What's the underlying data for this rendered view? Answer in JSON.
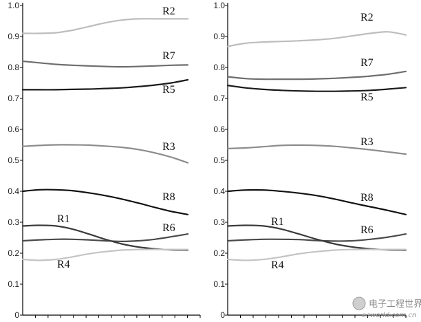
{
  "chart_data": [
    {
      "type": "line",
      "title": "",
      "xlabel": "",
      "ylabel": "",
      "ylim": [
        0,
        1.0
      ],
      "yticks": [
        "0",
        "0.1",
        "0.2",
        "0.3",
        "0.4",
        "0.5",
        "0.6",
        "0.7",
        "0.8",
        "0.9",
        "1.0"
      ],
      "x_tick_count": 14,
      "grid": false,
      "series": [
        {
          "name": "R2",
          "color": "#bdbdbd",
          "x": [
            0,
            1,
            2,
            3,
            4,
            5,
            6,
            7,
            8,
            9,
            10
          ],
          "values": [
            0.91,
            0.91,
            0.912,
            0.92,
            0.932,
            0.944,
            0.953,
            0.957,
            0.957,
            0.957,
            0.957
          ]
        },
        {
          "name": "R7",
          "color": "#6e6e6e",
          "x": [
            0,
            1,
            2,
            3,
            4,
            5,
            6,
            7,
            8,
            9,
            10
          ],
          "values": [
            0.82,
            0.815,
            0.81,
            0.807,
            0.805,
            0.803,
            0.802,
            0.803,
            0.805,
            0.807,
            0.808
          ]
        },
        {
          "name": "R5",
          "color": "#1a1a1a",
          "x": [
            0,
            1,
            2,
            3,
            4,
            5,
            6,
            7,
            8,
            9,
            10
          ],
          "values": [
            0.728,
            0.728,
            0.728,
            0.729,
            0.73,
            0.732,
            0.734,
            0.738,
            0.743,
            0.75,
            0.76
          ]
        },
        {
          "name": "R3",
          "color": "#8c8c8c",
          "x": [
            0,
            1,
            2,
            3,
            4,
            5,
            6,
            7,
            8,
            9,
            10
          ],
          "values": [
            0.545,
            0.548,
            0.55,
            0.55,
            0.549,
            0.546,
            0.542,
            0.535,
            0.524,
            0.51,
            0.492
          ]
        },
        {
          "name": "R8",
          "color": "#111111",
          "x": [
            0,
            1,
            2,
            3,
            4,
            5,
            6,
            7,
            8,
            9,
            10
          ],
          "values": [
            0.4,
            0.405,
            0.405,
            0.402,
            0.395,
            0.386,
            0.375,
            0.362,
            0.348,
            0.335,
            0.325
          ]
        },
        {
          "name": "R6",
          "color": "#4a4a4a",
          "x": [
            0,
            1,
            2,
            3,
            4,
            5,
            6,
            7,
            8,
            9,
            10
          ],
          "values": [
            0.24,
            0.243,
            0.245,
            0.245,
            0.243,
            0.24,
            0.238,
            0.24,
            0.245,
            0.253,
            0.262
          ]
        },
        {
          "name": "R1",
          "color": "#3a3a3a",
          "x": [
            0,
            1,
            2,
            3,
            4,
            5,
            6,
            7,
            8,
            9,
            10
          ],
          "values": [
            0.288,
            0.29,
            0.288,
            0.278,
            0.262,
            0.245,
            0.23,
            0.22,
            0.214,
            0.211,
            0.21
          ]
        },
        {
          "name": "R4",
          "color": "#c4c4c4",
          "x": [
            0,
            1,
            2,
            3,
            4,
            5,
            6,
            7,
            8,
            9,
            10
          ],
          "values": [
            0.18,
            0.177,
            0.18,
            0.188,
            0.198,
            0.205,
            0.21,
            0.212,
            0.212,
            0.212,
            0.212
          ]
        }
      ]
    },
    {
      "type": "line",
      "title": "",
      "xlabel": "",
      "ylabel": "",
      "ylim": [
        0,
        1.0
      ],
      "yticks": [
        "0",
        "0.1",
        "0.2",
        "0.3",
        "0.4",
        "0.5",
        "0.6",
        "0.7",
        "0.8",
        "0.9",
        "1.0"
      ],
      "x_tick_count": 14,
      "grid": false,
      "series": [
        {
          "name": "R2",
          "color": "#bdbdbd",
          "x": [
            0,
            1,
            2,
            3,
            4,
            5,
            6,
            7,
            8,
            9,
            10
          ],
          "values": [
            0.868,
            0.878,
            0.882,
            0.884,
            0.886,
            0.889,
            0.894,
            0.902,
            0.91,
            0.915,
            0.905
          ]
        },
        {
          "name": "R7",
          "color": "#6e6e6e",
          "x": [
            0,
            1,
            2,
            3,
            4,
            5,
            6,
            7,
            8,
            9,
            10
          ],
          "values": [
            0.77,
            0.764,
            0.762,
            0.762,
            0.762,
            0.763,
            0.765,
            0.768,
            0.772,
            0.778,
            0.787
          ]
        },
        {
          "name": "R5",
          "color": "#1a1a1a",
          "x": [
            0,
            1,
            2,
            3,
            4,
            5,
            6,
            7,
            8,
            9,
            10
          ],
          "values": [
            0.742,
            0.734,
            0.729,
            0.726,
            0.724,
            0.723,
            0.723,
            0.724,
            0.726,
            0.73,
            0.735
          ]
        },
        {
          "name": "R3",
          "color": "#8c8c8c",
          "x": [
            0,
            1,
            2,
            3,
            4,
            5,
            6,
            7,
            8,
            9,
            10
          ],
          "values": [
            0.538,
            0.54,
            0.544,
            0.548,
            0.549,
            0.548,
            0.545,
            0.54,
            0.534,
            0.527,
            0.52
          ]
        },
        {
          "name": "R8",
          "color": "#111111",
          "x": [
            0,
            1,
            2,
            3,
            4,
            5,
            6,
            7,
            8,
            9,
            10
          ],
          "values": [
            0.4,
            0.404,
            0.404,
            0.4,
            0.394,
            0.386,
            0.375,
            0.362,
            0.35,
            0.338,
            0.325
          ]
        },
        {
          "name": "R6",
          "color": "#4a4a4a",
          "x": [
            0,
            1,
            2,
            3,
            4,
            5,
            6,
            7,
            8,
            9,
            10
          ],
          "values": [
            0.24,
            0.243,
            0.245,
            0.245,
            0.244,
            0.241,
            0.239,
            0.24,
            0.245,
            0.252,
            0.262
          ]
        },
        {
          "name": "R1",
          "color": "#3a3a3a",
          "x": [
            0,
            1,
            2,
            3,
            4,
            5,
            6,
            7,
            8,
            9,
            10
          ],
          "values": [
            0.288,
            0.29,
            0.288,
            0.278,
            0.262,
            0.245,
            0.23,
            0.22,
            0.214,
            0.211,
            0.21
          ]
        },
        {
          "name": "R4",
          "color": "#c4c4c4",
          "x": [
            0,
            1,
            2,
            3,
            4,
            5,
            6,
            7,
            8,
            9,
            10
          ],
          "values": [
            0.18,
            0.177,
            0.18,
            0.188,
            0.198,
            0.205,
            0.21,
            0.212,
            0.212,
            0.212,
            0.212
          ]
        }
      ]
    }
  ],
  "watermark": {
    "brand": "电子工程世界",
    "site": "eeworld.com.cn"
  }
}
